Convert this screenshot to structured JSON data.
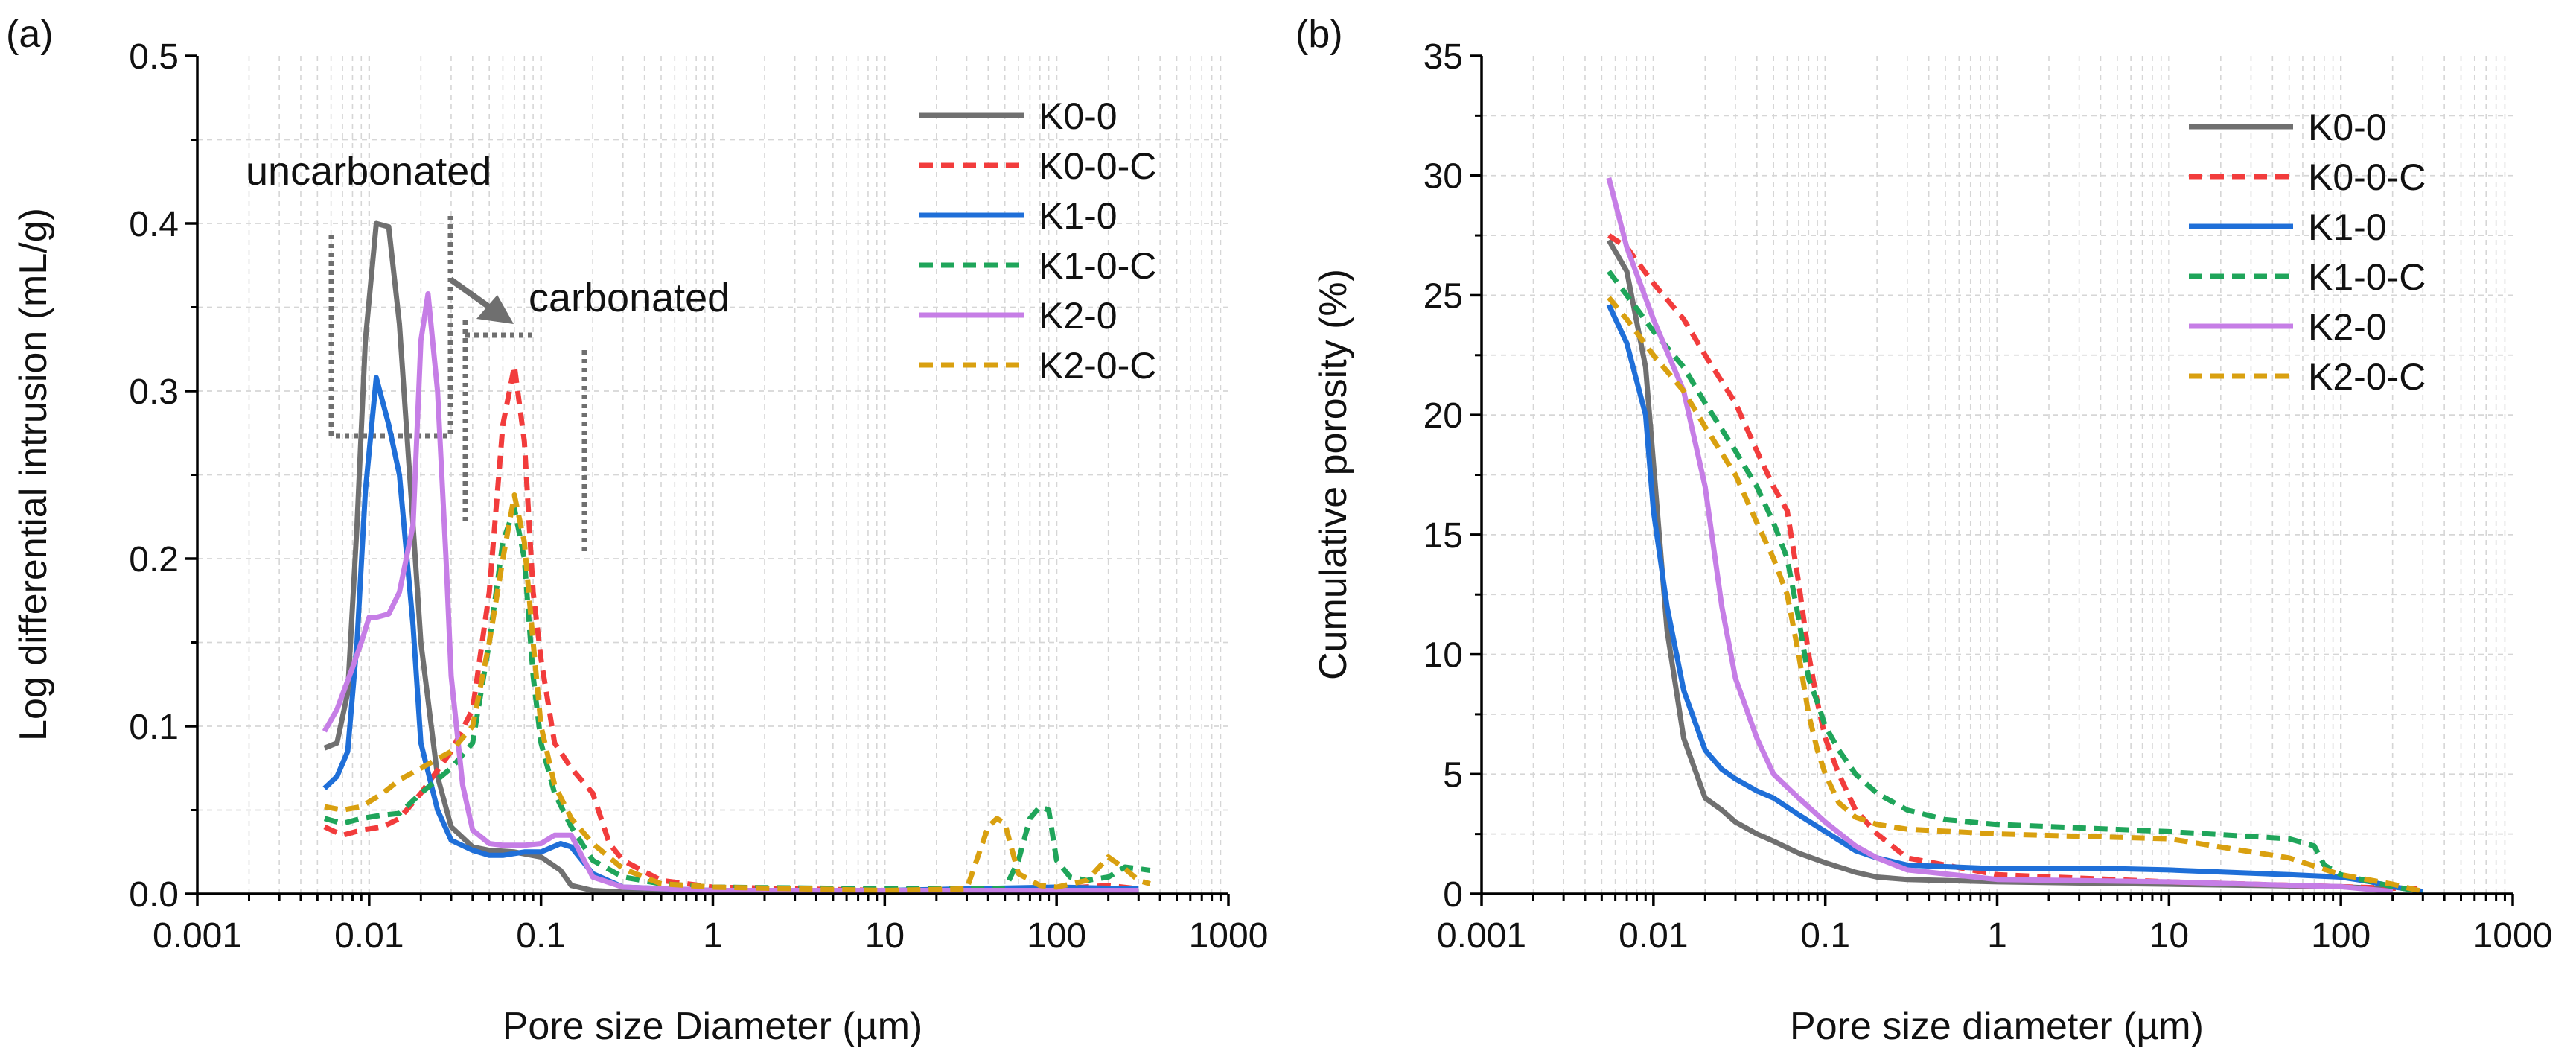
{
  "colors": {
    "K0-0": "#707070",
    "K0-0-C": "#f23c3c",
    "K1-0": "#1f6fd8",
    "K1-0-C": "#1fa55a",
    "K2-0": "#c67ee6",
    "K2-0-C": "#d9a010",
    "grid": "#d6d6d6",
    "annotation": "#6f6f6f"
  },
  "chart_data": [
    {
      "type": "line",
      "panel_label": "(a)",
      "title": "",
      "xlabel": "Pore size Diameter (µm)",
      "ylabel": "Log differential intrusion (mL/g)",
      "xscale": "log",
      "xlim": [
        0.001,
        1000
      ],
      "ylim": [
        0,
        0.5
      ],
      "xticks": [
        0.001,
        0.01,
        0.1,
        1,
        10,
        100,
        1000
      ],
      "xtick_labels": [
        "0.001",
        "0.01",
        "0.1",
        "1",
        "10",
        "100",
        "1000"
      ],
      "yticks": [
        0,
        0.1,
        0.2,
        0.3,
        0.4,
        0.5
      ],
      "ytick_labels": [
        "0.0",
        "0.1",
        "0.2",
        "0.3",
        "0.4",
        "0.5"
      ],
      "grid": true,
      "legend_position": "top-right",
      "annotations": {
        "uncarbonated": "uncarbonated",
        "carbonated": "carbonated"
      },
      "series": [
        {
          "name": "K0-0",
          "dash": "solid",
          "x": [
            0.0055,
            0.0065,
            0.0075,
            0.0085,
            0.0095,
            0.011,
            0.013,
            0.015,
            0.018,
            0.02,
            0.025,
            0.03,
            0.04,
            0.05,
            0.07,
            0.1,
            0.13,
            0.15,
            0.2,
            0.3,
            1,
            10,
            100,
            300
          ],
          "y": [
            0.087,
            0.09,
            0.12,
            0.22,
            0.33,
            0.4,
            0.398,
            0.34,
            0.22,
            0.15,
            0.07,
            0.04,
            0.028,
            0.026,
            0.025,
            0.022,
            0.014,
            0.005,
            0.002,
            0.001,
            0.001,
            0.001,
            0.001,
            0.001
          ]
        },
        {
          "name": "K0-0-C",
          "dash": "dash",
          "x": [
            0.0055,
            0.007,
            0.009,
            0.012,
            0.015,
            0.02,
            0.03,
            0.04,
            0.05,
            0.06,
            0.07,
            0.08,
            0.09,
            0.1,
            0.12,
            0.15,
            0.2,
            0.25,
            0.3,
            0.5,
            1,
            10,
            100,
            200,
            300
          ],
          "y": [
            0.04,
            0.035,
            0.038,
            0.04,
            0.045,
            0.06,
            0.085,
            0.11,
            0.18,
            0.28,
            0.315,
            0.27,
            0.18,
            0.14,
            0.09,
            0.075,
            0.06,
            0.03,
            0.02,
            0.008,
            0.004,
            0.002,
            0.003,
            0.005,
            0.003
          ]
        },
        {
          "name": "K1-0",
          "dash": "solid",
          "x": [
            0.0055,
            0.0065,
            0.0075,
            0.0085,
            0.0095,
            0.011,
            0.013,
            0.015,
            0.018,
            0.02,
            0.025,
            0.03,
            0.04,
            0.05,
            0.06,
            0.08,
            0.1,
            0.13,
            0.15,
            0.2,
            0.3,
            1,
            10,
            100,
            300
          ],
          "y": [
            0.063,
            0.07,
            0.085,
            0.15,
            0.24,
            0.308,
            0.28,
            0.25,
            0.16,
            0.09,
            0.05,
            0.032,
            0.026,
            0.023,
            0.023,
            0.025,
            0.025,
            0.03,
            0.028,
            0.012,
            0.004,
            0.002,
            0.002,
            0.004,
            0.003
          ]
        },
        {
          "name": "K1-0-C",
          "dash": "dash",
          "x": [
            0.0055,
            0.007,
            0.009,
            0.012,
            0.015,
            0.02,
            0.03,
            0.04,
            0.05,
            0.06,
            0.07,
            0.08,
            0.09,
            0.1,
            0.12,
            0.15,
            0.2,
            0.3,
            0.5,
            1,
            10,
            50,
            60,
            70,
            80,
            90,
            100,
            120,
            150,
            200,
            250,
            300,
            350
          ],
          "y": [
            0.045,
            0.042,
            0.045,
            0.047,
            0.048,
            0.06,
            0.075,
            0.09,
            0.15,
            0.21,
            0.23,
            0.2,
            0.13,
            0.09,
            0.06,
            0.04,
            0.02,
            0.01,
            0.006,
            0.004,
            0.003,
            0.003,
            0.02,
            0.045,
            0.052,
            0.05,
            0.02,
            0.01,
            0.008,
            0.01,
            0.016,
            0.015,
            0.014
          ]
        },
        {
          "name": "K2-0",
          "dash": "solid",
          "x": [
            0.0055,
            0.0065,
            0.008,
            0.009,
            0.01,
            0.011,
            0.013,
            0.015,
            0.018,
            0.02,
            0.022,
            0.025,
            0.028,
            0.03,
            0.035,
            0.04,
            0.05,
            0.06,
            0.08,
            0.1,
            0.12,
            0.15,
            0.2,
            0.3,
            1,
            10,
            100,
            300
          ],
          "y": [
            0.097,
            0.11,
            0.135,
            0.15,
            0.165,
            0.165,
            0.167,
            0.18,
            0.22,
            0.33,
            0.358,
            0.3,
            0.2,
            0.13,
            0.065,
            0.038,
            0.03,
            0.029,
            0.029,
            0.03,
            0.035,
            0.035,
            0.01,
            0.004,
            0.002,
            0.002,
            0.002,
            0.002
          ]
        },
        {
          "name": "K2-0-C",
          "dash": "dash",
          "x": [
            0.0055,
            0.007,
            0.009,
            0.012,
            0.015,
            0.02,
            0.03,
            0.04,
            0.05,
            0.06,
            0.07,
            0.08,
            0.09,
            0.1,
            0.12,
            0.15,
            0.2,
            0.3,
            0.5,
            1,
            10,
            30,
            40,
            45,
            50,
            60,
            80,
            100,
            150,
            200,
            250,
            300,
            350
          ],
          "y": [
            0.052,
            0.05,
            0.052,
            0.06,
            0.068,
            0.075,
            0.085,
            0.1,
            0.15,
            0.2,
            0.238,
            0.21,
            0.15,
            0.1,
            0.065,
            0.045,
            0.03,
            0.015,
            0.006,
            0.004,
            0.002,
            0.003,
            0.04,
            0.045,
            0.042,
            0.012,
            0.005,
            0.004,
            0.008,
            0.022,
            0.015,
            0.008,
            0.006
          ]
        }
      ]
    },
    {
      "type": "line",
      "panel_label": "(b)",
      "title": "",
      "xlabel": "Pore size diameter (µm)",
      "ylabel": "Cumulative porosity (%)",
      "xscale": "log",
      "xlim": [
        0.001,
        1000
      ],
      "ylim": [
        0,
        35
      ],
      "xticks": [
        0.001,
        0.01,
        0.1,
        1,
        10,
        100,
        1000
      ],
      "xtick_labels": [
        "0.001",
        "0.01",
        "0.1",
        "1",
        "10",
        "100",
        "1000"
      ],
      "yticks": [
        0,
        5,
        10,
        15,
        20,
        25,
        30,
        35
      ],
      "ytick_labels": [
        "0",
        "5",
        "10",
        "15",
        "20",
        "25",
        "30",
        "35"
      ],
      "grid": true,
      "legend_position": "top-right",
      "series": [
        {
          "name": "K0-0",
          "dash": "solid",
          "x": [
            0.0055,
            0.007,
            0.009,
            0.01,
            0.012,
            0.015,
            0.02,
            0.025,
            0.03,
            0.04,
            0.05,
            0.07,
            0.1,
            0.15,
            0.2,
            0.3,
            1,
            10,
            100,
            200
          ],
          "y": [
            27.3,
            26,
            22,
            18,
            11,
            6.5,
            4,
            3.5,
            3,
            2.5,
            2.2,
            1.7,
            1.3,
            0.9,
            0.7,
            0.6,
            0.5,
            0.4,
            0.3,
            0.2
          ]
        },
        {
          "name": "K0-0-C",
          "dash": "dash",
          "x": [
            0.0055,
            0.007,
            0.01,
            0.015,
            0.02,
            0.03,
            0.04,
            0.05,
            0.06,
            0.07,
            0.08,
            0.09,
            0.1,
            0.12,
            0.15,
            0.2,
            0.3,
            1,
            10,
            100,
            300
          ],
          "y": [
            27.5,
            27,
            25.5,
            24,
            22.5,
            20.5,
            18.5,
            17,
            16,
            13,
            10,
            8,
            6.5,
            5,
            3.5,
            2.5,
            1.5,
            0.8,
            0.5,
            0.3,
            0.2
          ]
        },
        {
          "name": "K1-0",
          "dash": "solid",
          "x": [
            0.0055,
            0.007,
            0.009,
            0.01,
            0.012,
            0.015,
            0.02,
            0.025,
            0.03,
            0.04,
            0.05,
            0.07,
            0.1,
            0.15,
            0.2,
            0.3,
            1,
            5,
            10,
            50,
            100,
            150,
            200,
            300
          ],
          "y": [
            24.6,
            23,
            20,
            16,
            12,
            8.5,
            6,
            5.2,
            4.8,
            4.3,
            4,
            3.3,
            2.6,
            1.8,
            1.5,
            1.2,
            1.05,
            1.05,
            1,
            0.8,
            0.7,
            0.5,
            0.3,
            0.1
          ]
        },
        {
          "name": "K1-0-C",
          "dash": "dash",
          "x": [
            0.0055,
            0.007,
            0.01,
            0.015,
            0.02,
            0.03,
            0.04,
            0.05,
            0.06,
            0.07,
            0.08,
            0.09,
            0.1,
            0.12,
            0.15,
            0.2,
            0.3,
            0.5,
            1,
            10,
            50,
            70,
            80,
            100,
            200,
            300
          ],
          "y": [
            26,
            25,
            23.5,
            22,
            20.5,
            18.5,
            17,
            15.5,
            14,
            11.5,
            9,
            8,
            7,
            6,
            5,
            4.2,
            3.5,
            3.1,
            2.9,
            2.6,
            2.3,
            2,
            1.2,
            0.8,
            0.3,
            0.1
          ]
        },
        {
          "name": "K2-0",
          "dash": "solid",
          "x": [
            0.0055,
            0.007,
            0.01,
            0.015,
            0.02,
            0.025,
            0.03,
            0.04,
            0.05,
            0.07,
            0.1,
            0.15,
            0.2,
            0.3,
            1,
            10,
            100,
            200
          ],
          "y": [
            29.9,
            27,
            24,
            21,
            17,
            12,
            9,
            6.5,
            5,
            4,
            3,
            2,
            1.5,
            1,
            0.6,
            0.5,
            0.3,
            0.1
          ]
        },
        {
          "name": "K2-0-C",
          "dash": "dash",
          "x": [
            0.0055,
            0.007,
            0.01,
            0.015,
            0.02,
            0.03,
            0.04,
            0.05,
            0.06,
            0.07,
            0.08,
            0.09,
            0.1,
            0.12,
            0.15,
            0.2,
            0.3,
            1,
            10,
            50,
            100,
            200,
            300
          ],
          "y": [
            24.9,
            24,
            22.5,
            21,
            19.5,
            17.5,
            15.5,
            14,
            12.5,
            10,
            7.5,
            6,
            5,
            3.8,
            3.2,
            2.9,
            2.7,
            2.5,
            2.3,
            1.5,
            0.8,
            0.4,
            0.1
          ]
        }
      ]
    }
  ]
}
